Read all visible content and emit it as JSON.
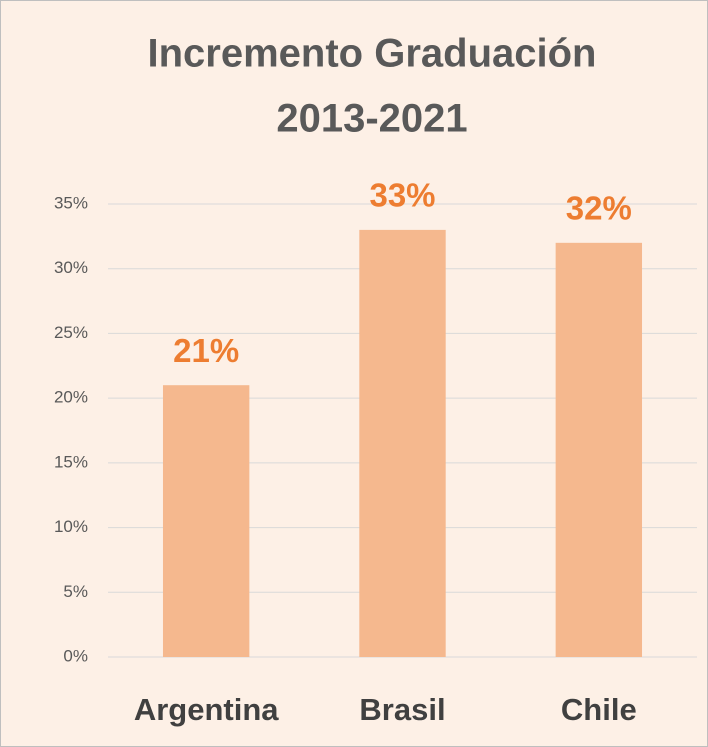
{
  "chart_data": {
    "type": "bar",
    "title": [
      "Incremento Graduación",
      "2013-2021"
    ],
    "categories": [
      "Argentina",
      "Brasil",
      "Chile"
    ],
    "values": [
      21,
      33,
      32
    ],
    "value_labels": [
      "21%",
      "33%",
      "32%"
    ],
    "color": "#f5b88e",
    "label_color": "#ed7d31",
    "ylim": [
      0,
      35
    ],
    "yticks": [
      {
        "value": 0,
        "label": "0%"
      },
      {
        "value": 5,
        "label": "5%"
      },
      {
        "value": 10,
        "label": "10%"
      },
      {
        "value": 15,
        "label": "15%"
      },
      {
        "value": 20,
        "label": "20%"
      },
      {
        "value": 25,
        "label": "25%"
      },
      {
        "value": 30,
        "label": "30%"
      },
      {
        "value": 35,
        "label": "35%"
      }
    ],
    "grid": true
  }
}
